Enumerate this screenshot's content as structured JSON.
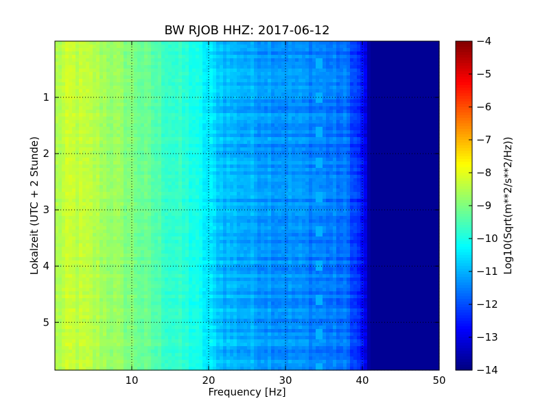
{
  "chart_data": {
    "type": "heatmap",
    "title": "BW RJOB HHZ: 2017-06-12",
    "xlabel": "Frequency [Hz]",
    "ylabel": "Lokalzeit (UTC + 2 Stunde)",
    "xlim": [
      0,
      50
    ],
    "ylim": [
      5.85,
      0
    ],
    "xticks": [
      {
        "value": 10,
        "label": "10"
      },
      {
        "value": 20,
        "label": "20"
      },
      {
        "value": 30,
        "label": "30"
      },
      {
        "value": 40,
        "label": "40"
      },
      {
        "value": 50,
        "label": "50"
      }
    ],
    "yticks": [
      {
        "value": 1,
        "label": "1"
      },
      {
        "value": 2,
        "label": "2"
      },
      {
        "value": 3,
        "label": "3"
      },
      {
        "value": 4,
        "label": "4"
      },
      {
        "value": 5,
        "label": "5"
      }
    ],
    "grid": true,
    "colormap": "jet",
    "colorbar": {
      "label": "Log10(Sqrt(m**2/s**2/Hz))",
      "range": [
        -14,
        -4
      ],
      "ticks": [
        {
          "value": -4,
          "label": "−4"
        },
        {
          "value": -5,
          "label": "−5"
        },
        {
          "value": -6,
          "label": "−6"
        },
        {
          "value": -7,
          "label": "−7"
        },
        {
          "value": -8,
          "label": "−8"
        },
        {
          "value": -9,
          "label": "−9"
        },
        {
          "value": -10,
          "label": "−10"
        },
        {
          "value": -11,
          "label": "−11"
        },
        {
          "value": -12,
          "label": "−12"
        },
        {
          "value": -13,
          "label": "−13"
        },
        {
          "value": -14,
          "label": "−14"
        }
      ]
    },
    "spectral_profile": {
      "frequency_hz": [
        0,
        2,
        5,
        8,
        10,
        12,
        15,
        18,
        20,
        22,
        25,
        30,
        35,
        38,
        40,
        41,
        50
      ],
      "log10_amplitude": [
        -8.6,
        -8.3,
        -8.5,
        -8.8,
        -9.0,
        -9.3,
        -9.7,
        -10.0,
        -10.5,
        -10.9,
        -11.1,
        -11.3,
        -11.5,
        -11.7,
        -12.6,
        -13.8,
        -13.8
      ]
    },
    "tonal_line": {
      "frequency_hz": [
        34.0,
        35.0
      ],
      "log10_amplitude": -11.0,
      "repeat_interval_h": 0.6
    }
  }
}
